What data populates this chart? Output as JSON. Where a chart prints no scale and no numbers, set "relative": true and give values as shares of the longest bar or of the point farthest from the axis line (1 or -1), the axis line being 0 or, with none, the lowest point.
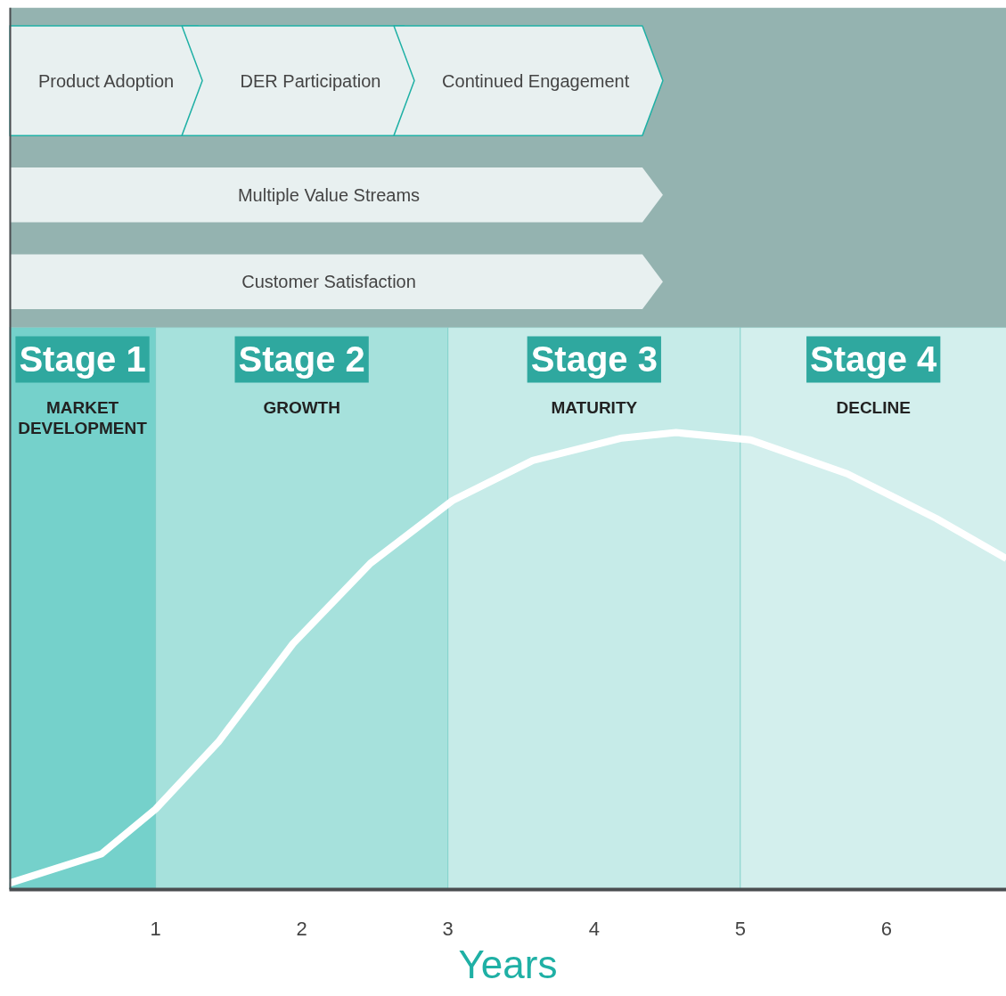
{
  "chart_data": {
    "type": "line",
    "relative": true,
    "xlabel": "Years",
    "x": [
      0.0,
      0.63,
      1.0,
      1.43,
      1.94,
      2.47,
      3.03,
      3.58,
      4.19,
      4.56,
      5.07,
      5.73,
      6.34,
      6.82
    ],
    "series": [
      {
        "color": "#ffffff",
        "values": [
          0.014,
          0.078,
          0.176,
          0.323,
          0.538,
          0.714,
          0.851,
          0.939,
          0.988,
          1.0,
          0.984,
          0.91,
          0.812,
          0.724
        ]
      }
    ],
    "xlim": [
      0,
      6.82
    ],
    "xticks": [
      1,
      2,
      3,
      4,
      5,
      6
    ],
    "marker": "none",
    "line_style": "solid",
    "bands": [
      {
        "axis": "x",
        "from": 0,
        "to": 1,
        "label": "Stage 1",
        "color": "#75d1cb"
      },
      {
        "axis": "x",
        "from": 1,
        "to": 3,
        "label": "Stage 2",
        "color": "#a6e1dc"
      },
      {
        "axis": "x",
        "from": 3,
        "to": 5,
        "label": "Stage 3",
        "color": "#c6ebe8"
      },
      {
        "axis": "x",
        "from": 5,
        "to": 6.82,
        "label": "Stage 4",
        "color": "#d3efed"
      }
    ],
    "annotations": [
      "MARKET\nDEVELOPMENT",
      "GROWTH",
      "MATURITY",
      "DECLINE",
      "Product Adoption",
      "DER Participation",
      "Continued Engagement",
      "Multiple Value Streams",
      "Customer Satisfaction"
    ]
  }
}
